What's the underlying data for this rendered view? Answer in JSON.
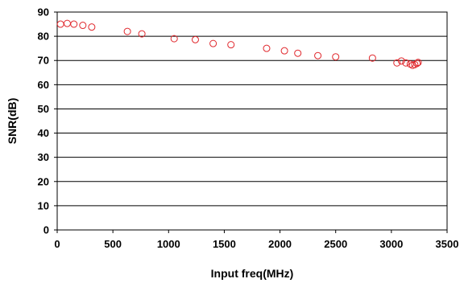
{
  "chart_data": {
    "type": "scatter",
    "title": "",
    "xlabel": "Input freq(MHz)",
    "ylabel": "SNR(dB)",
    "xlim": [
      0,
      3500
    ],
    "ylim": [
      0,
      90
    ],
    "x_ticks": [
      0,
      500,
      1000,
      1500,
      2000,
      2500,
      3000,
      3500
    ],
    "y_ticks": [
      0,
      10,
      20,
      30,
      40,
      50,
      60,
      70,
      80,
      90
    ],
    "grid": "horizontal",
    "legend": "none",
    "marker": "open-circle",
    "marker_color": "#e0262b",
    "series": [
      {
        "x": [
          30,
          90,
          150,
          230,
          310,
          630,
          760,
          1050,
          1240,
          1400,
          1560,
          1880,
          2040,
          2160,
          2340,
          2500,
          2830,
          3050,
          3090,
          3130,
          3170,
          3190,
          3210,
          3230,
          3240
        ],
        "y": [
          85,
          85.3,
          85,
          84.5,
          83.8,
          82,
          81,
          79,
          78.6,
          77,
          76.5,
          75,
          74,
          73,
          72,
          71.5,
          71,
          69,
          69.8,
          69,
          68.5,
          68,
          68.3,
          68.8,
          69.2
        ]
      }
    ]
  }
}
